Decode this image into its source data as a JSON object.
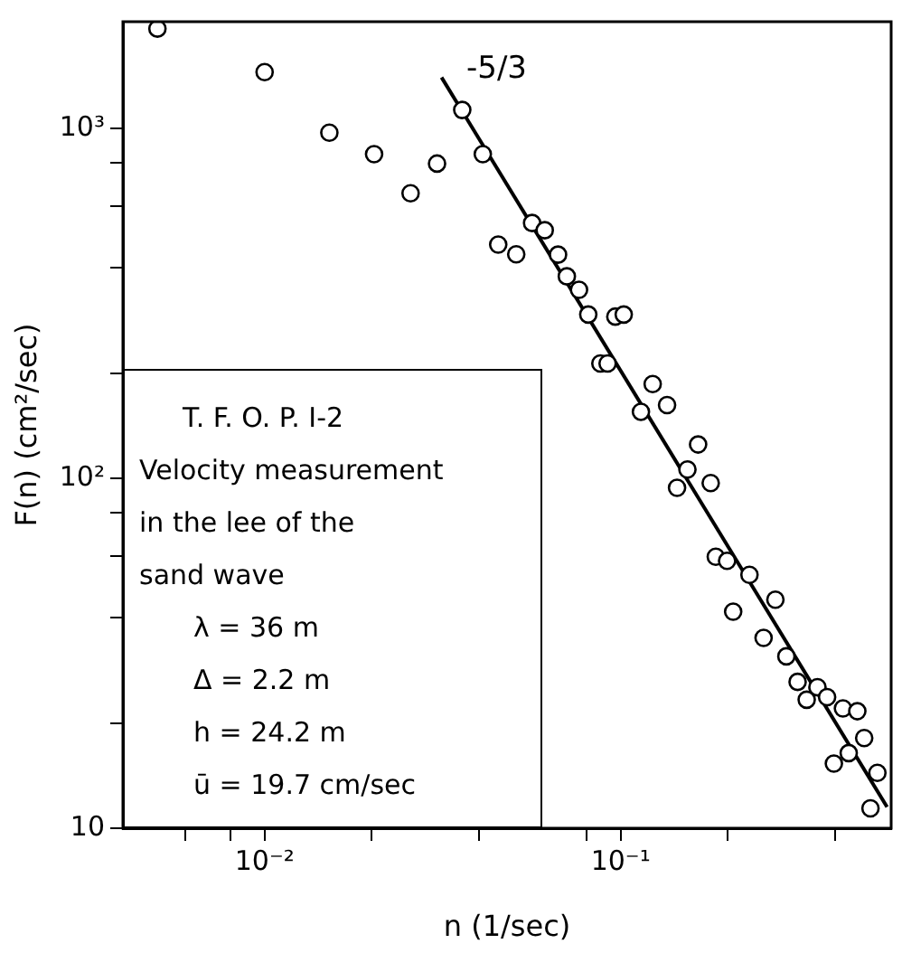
{
  "chart_data": {
    "type": "scatter",
    "xlabel": "n (1/sec)",
    "ylabel": "F(n) (cm²/sec)",
    "log": "xy",
    "grid": false,
    "legend": false,
    "marker": "circle",
    "xlim": [
      0.004,
      0.575
    ],
    "ylim": [
      10,
      2020
    ],
    "xticks": [
      {
        "value": 0.006,
        "label": null
      },
      {
        "value": 0.008,
        "label": null
      },
      {
        "value": 0.01,
        "label": "10⁻²"
      },
      {
        "value": 0.02,
        "label": null
      },
      {
        "value": 0.04,
        "label": null
      },
      {
        "value": 0.08,
        "label": null
      },
      {
        "value": 0.1,
        "label": "10⁻¹"
      },
      {
        "value": 0.2,
        "label": null
      },
      {
        "value": 0.4,
        "label": null
      }
    ],
    "yticks": [
      10,
      {
        "value": 20,
        "label": null
      },
      {
        "value": 40,
        "label": null
      },
      {
        "value": 60,
        "label": null
      },
      {
        "value": 80,
        "label": null
      },
      {
        "value": 100,
        "label": "10²"
      },
      {
        "value": 200,
        "label": null
      },
      {
        "value": 400,
        "label": null
      },
      {
        "value": 600,
        "label": null
      },
      {
        "value": 800,
        "label": null
      },
      {
        "value": 1000,
        "label": "10³"
      }
    ],
    "series": [
      {
        "type": "scatter",
        "color": "#000000",
        "x": [
          0.005,
          0.01,
          0.0152,
          0.0203,
          0.0257,
          0.0305,
          0.0359,
          0.041,
          0.0453,
          0.0509,
          0.0564,
          0.0612,
          0.0667,
          0.0706,
          0.0764,
          0.0811,
          0.0966,
          0.102,
          0.0877,
          0.0919,
          0.123,
          0.135,
          0.114,
          0.165,
          0.154,
          0.144,
          0.179,
          0.185,
          0.199,
          0.23,
          0.272,
          0.207,
          0.252,
          0.292,
          0.314,
          0.333,
          0.357,
          0.38,
          0.421,
          0.462,
          0.483,
          0.437,
          0.397,
          0.526,
          0.503
        ],
        "values": [
          1930,
          1450,
          973,
          845,
          653,
          794,
          1130,
          845,
          466,
          437,
          537,
          512,
          436,
          378,
          346,
          294,
          290,
          294,
          213,
          213,
          186,
          162,
          155,
          125,
          106,
          94,
          97,
          59.7,
          58.1,
          53,
          45,
          41.6,
          35,
          31,
          26.2,
          23.3,
          25.3,
          23.7,
          22,
          21.6,
          18.1,
          16.4,
          15.3,
          14.4,
          11.4
        ]
      },
      {
        "type": "line",
        "color": "#000000",
        "marker": "none",
        "x": [
          0.0314,
          0.56
        ],
        "values": [
          1400,
          11.5
        ]
      }
    ],
    "annotations": [
      "-5/3",
      "T. F. O. P. I-2",
      "Velocity measurement",
      "in the lee of the",
      "sand wave",
      "λ = 36 m",
      "Δ = 2.2 m",
      "h = 24.2 m",
      "ū = 19.7 cm/sec"
    ]
  }
}
